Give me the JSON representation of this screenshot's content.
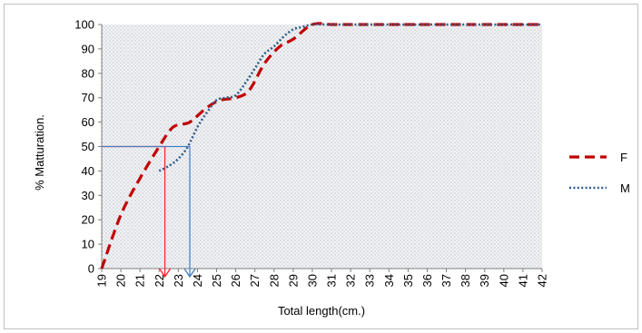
{
  "chart_data": {
    "type": "line",
    "xlabel": "Total length(cm.)",
    "ylabel": "% Matturation.",
    "x_categories": [
      "19",
      "20",
      "21",
      "22",
      "23",
      "24",
      "25",
      "26",
      "27",
      "28",
      "29",
      "30",
      "31",
      "32",
      "33",
      "34",
      "35",
      "36",
      "37",
      "38",
      "39",
      "40",
      "41",
      "42"
    ],
    "ylim": [
      0,
      100
    ],
    "y_ticks": [
      "0",
      "10",
      "20",
      "30",
      "40",
      "50",
      "60",
      "70",
      "80",
      "90",
      "100"
    ],
    "grid": false,
    "legend_position": "right",
    "series": [
      {
        "name": "F",
        "color": "#c00000",
        "style": "dashed",
        "points": [
          [
            19,
            0
          ],
          [
            20,
            22
          ],
          [
            21,
            37
          ],
          [
            22,
            50
          ],
          [
            22.6,
            57
          ],
          [
            23,
            59
          ],
          [
            23.6,
            60
          ],
          [
            24.5,
            66
          ],
          [
            25.2,
            69
          ],
          [
            26,
            70
          ],
          [
            26.7,
            73
          ],
          [
            27.5,
            84
          ],
          [
            28.3,
            91
          ],
          [
            29,
            94
          ],
          [
            30,
            100
          ],
          [
            31,
            100
          ],
          [
            32,
            100
          ],
          [
            33,
            100
          ],
          [
            34,
            100
          ],
          [
            35,
            100
          ],
          [
            36,
            100
          ],
          [
            37,
            100
          ],
          [
            38,
            100
          ],
          [
            39,
            100
          ],
          [
            40,
            100
          ],
          [
            41,
            100
          ],
          [
            42,
            100
          ]
        ]
      },
      {
        "name": "M",
        "color": "#2e5f8a",
        "style": "dotted",
        "points": [
          [
            22,
            40
          ],
          [
            22.5,
            42
          ],
          [
            23,
            45
          ],
          [
            23.5,
            50
          ],
          [
            24,
            58
          ],
          [
            24.5,
            64
          ],
          [
            25,
            69
          ],
          [
            25.5,
            70
          ],
          [
            26,
            71
          ],
          [
            26.5,
            76
          ],
          [
            27,
            82
          ],
          [
            27.5,
            88
          ],
          [
            28,
            91
          ],
          [
            28.5,
            95
          ],
          [
            29,
            98
          ],
          [
            29.5,
            99
          ],
          [
            30,
            100
          ],
          [
            31,
            100
          ],
          [
            32,
            100
          ],
          [
            33,
            100
          ],
          [
            34,
            100
          ],
          [
            35,
            100
          ],
          [
            36,
            100
          ],
          [
            37,
            100
          ],
          [
            38,
            100
          ],
          [
            39,
            100
          ],
          [
            40,
            100
          ],
          [
            41,
            100
          ],
          [
            42,
            100
          ]
        ]
      }
    ],
    "annotations": [
      {
        "series": "F",
        "x": 22.3,
        "y": 50,
        "color": "#ff2a2a"
      },
      {
        "series": "M",
        "x": 23.6,
        "y": 50,
        "color": "#4a7fc1"
      }
    ]
  }
}
